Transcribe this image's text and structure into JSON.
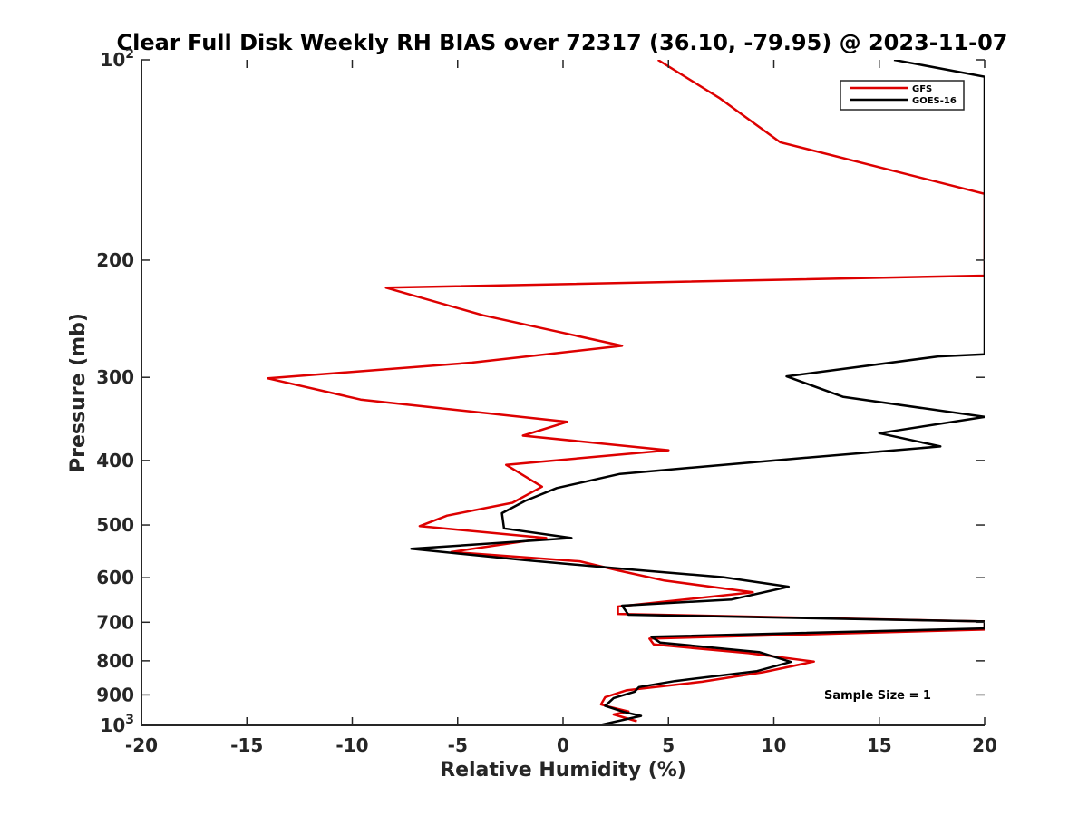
{
  "chart_data": {
    "type": "line",
    "title": "Clear Full Disk Weekly RH BIAS over 72317 (36.10, -79.95) @ 2023-11-07",
    "xlabel": "Relative Humidity (%)",
    "ylabel": "Pressure (mb)",
    "xlim": [
      -20,
      20
    ],
    "ylim": [
      100,
      1000
    ],
    "y_scale": "log",
    "y_reversed": true,
    "grid": false,
    "legend_position": "top-right",
    "x_ticks": [
      "-20",
      "-15",
      "-10",
      "-5",
      "0",
      "5",
      "10",
      "15",
      "20"
    ],
    "y_ticks": [
      {
        "value": 100,
        "base": "10",
        "exp": "2"
      },
      {
        "value": 200,
        "label": "200"
      },
      {
        "value": 300,
        "label": "300"
      },
      {
        "value": 400,
        "label": "400"
      },
      {
        "value": 500,
        "label": "500"
      },
      {
        "value": 600,
        "label": "600"
      },
      {
        "value": 700,
        "label": "700"
      },
      {
        "value": 800,
        "label": "800"
      },
      {
        "value": 900,
        "label": "900"
      },
      {
        "value": 1000,
        "base": "10",
        "exp": "3"
      }
    ],
    "annotation": "Sample Size = 1",
    "series": [
      {
        "name": "GFS",
        "color": "#dd0000",
        "points": [
          [
            4.5,
            100
          ],
          [
            7.4,
            114
          ],
          [
            10.3,
            133
          ],
          [
            20,
            159
          ],
          [
            20,
            211
          ],
          [
            -8.4,
            220
          ],
          [
            -3.8,
            242
          ],
          [
            2.8,
            269
          ],
          [
            -4.3,
            285
          ],
          [
            -14.0,
            301
          ],
          [
            -9.6,
            324
          ],
          [
            0.2,
            350
          ],
          [
            -1.9,
            367
          ],
          [
            5.0,
            386
          ],
          [
            -2.7,
            406
          ],
          [
            -1.0,
            438
          ],
          [
            -2.4,
            463
          ],
          [
            -5.5,
            484
          ],
          [
            -6.8,
            502
          ],
          [
            -0.8,
            523
          ],
          [
            -5.3,
            549
          ],
          [
            0.8,
            567
          ],
          [
            2.6,
            585
          ],
          [
            4.8,
            606
          ],
          [
            9.0,
            631
          ],
          [
            2.6,
            663
          ],
          [
            2.6,
            680
          ],
          [
            20,
            698
          ],
          [
            20,
            718
          ],
          [
            4.1,
            741
          ],
          [
            4.3,
            756
          ],
          [
            8.8,
            779
          ],
          [
            11.9,
            802
          ],
          [
            9.5,
            832
          ],
          [
            6.6,
            860
          ],
          [
            3.0,
            886
          ],
          [
            2.0,
            907
          ],
          [
            1.8,
            930
          ],
          [
            2.2,
            938
          ],
          [
            3.1,
            953
          ],
          [
            2.4,
            963
          ],
          [
            3.5,
            986
          ]
        ]
      },
      {
        "name": "GOES-16",
        "color": "#000000",
        "points": [
          [
            15.7,
            100
          ],
          [
            20,
            106
          ],
          [
            20,
            277
          ],
          [
            17.8,
            279
          ],
          [
            10.6,
            299
          ],
          [
            13.3,
            321
          ],
          [
            20,
            344
          ],
          [
            15.0,
            364
          ],
          [
            17.9,
            381
          ],
          [
            10.4,
            399
          ],
          [
            2.7,
            419
          ],
          [
            -0.3,
            440
          ],
          [
            -1.8,
            460
          ],
          [
            -2.9,
            480
          ],
          [
            -2.8,
            506
          ],
          [
            0.4,
            523
          ],
          [
            -7.2,
            543
          ],
          [
            -2.0,
            564
          ],
          [
            2.9,
            582
          ],
          [
            7.6,
            599
          ],
          [
            10.7,
            619
          ],
          [
            8.0,
            647
          ],
          [
            2.8,
            661
          ],
          [
            3.1,
            682
          ],
          [
            20,
            698
          ],
          [
            20,
            715
          ],
          [
            4.2,
            736
          ],
          [
            4.6,
            751
          ],
          [
            9.3,
            776
          ],
          [
            10.8,
            803
          ],
          [
            9.2,
            829
          ],
          [
            5.3,
            858
          ],
          [
            3.6,
            876
          ],
          [
            3.4,
            890
          ],
          [
            2.4,
            910
          ],
          [
            2.0,
            935
          ],
          [
            2.9,
            955
          ],
          [
            3.7,
            968
          ],
          [
            1.7,
            1000
          ]
        ]
      }
    ]
  }
}
